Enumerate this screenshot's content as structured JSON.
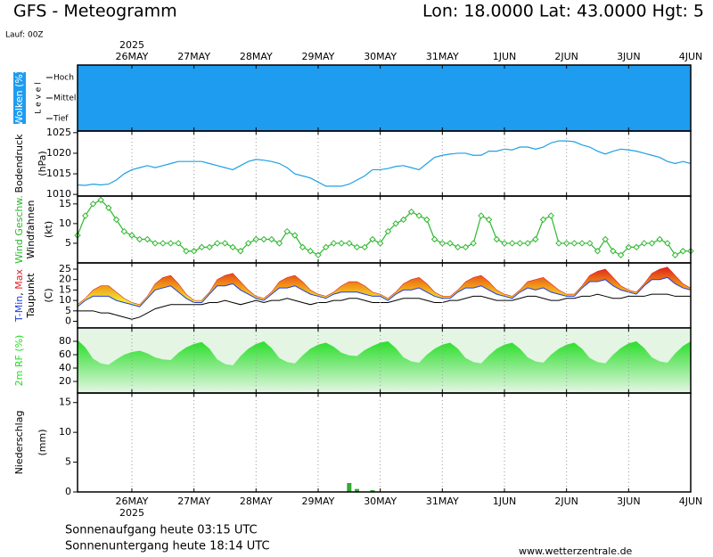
{
  "header": {
    "title": "GFS - Meteogramm",
    "location": "Lon: 18.0000  Lat: 43.0000  Hgt: 5",
    "run": "Lauf: 00Z"
  },
  "x_axis": {
    "year": "2025",
    "categories": [
      null,
      null,
      null,
      null,
      null,
      null,
      null,
      "26MAY",
      null,
      null,
      null,
      null,
      null,
      null,
      null,
      "27MAY",
      null,
      null,
      null,
      null,
      null,
      null,
      null,
      "28MAY",
      null,
      null,
      null,
      null,
      null,
      null,
      null,
      "29MAY",
      null,
      null,
      null,
      null,
      null,
      null,
      null,
      "30MAY",
      null,
      null,
      null,
      null,
      null,
      null,
      null,
      "31MAY",
      null,
      null,
      null,
      null,
      null,
      null,
      null,
      "1JUN",
      null,
      null,
      null,
      null,
      null,
      null,
      null,
      "2JUN",
      null,
      null,
      null,
      null,
      null,
      null,
      null,
      "3JUN",
      null,
      null,
      null,
      null,
      null,
      null,
      null,
      "4JUN"
    ]
  },
  "chart_data": [
    {
      "type": "cloud",
      "ylabel": [
        "Wolken (%)",
        "L e v e l"
      ],
      "levels": [
        "Hoch",
        "Mittel",
        "Tief"
      ],
      "color": "#1e9cf0"
    },
    {
      "type": "line",
      "ylabel": [
        "Bodendruck",
        "(hPa)"
      ],
      "ylim": [
        1009.6,
        1025.4
      ],
      "yticks": [
        1010,
        1015,
        1020,
        1025
      ],
      "grid": true,
      "series": [
        {
          "color": "#1ea0e6",
          "values": [
            1012.3,
            1012.2,
            1012.5,
            1012.3,
            1012.5,
            1013.5,
            1015,
            1016,
            1016.5,
            1017,
            1016.5,
            1017,
            1017.5,
            1018,
            1018,
            1018,
            1018,
            1017.5,
            1017,
            1016.5,
            1016,
            1017,
            1018,
            1018.5,
            1018.3,
            1018,
            1017.5,
            1016.5,
            1015,
            1014.5,
            1014,
            1013,
            1012,
            1012,
            1012,
            1012.5,
            1013.5,
            1014.5,
            1016,
            1016,
            1016.3,
            1016.8,
            1017,
            1016.5,
            1016,
            1017.5,
            1019,
            1019.5,
            1019.8,
            1020,
            1020,
            1019.5,
            1019.5,
            1020.5,
            1020.5,
            1021,
            1020.8,
            1021.5,
            1021.5,
            1021,
            1021.5,
            1022.5,
            1023,
            1023,
            1022.8,
            1022,
            1021.5,
            1020.5,
            1019.8,
            1020.5,
            1021,
            1020.8,
            1020.5,
            1020,
            1019.5,
            1019,
            1018,
            1017.5,
            1018,
            1017.5
          ]
        }
      ]
    },
    {
      "type": "line",
      "markers": true,
      "ylabel": [
        "Windfahnen",
        "(kt)"
      ],
      "ylim": [
        0,
        17
      ],
      "yticks": [
        5,
        10,
        15
      ],
      "grid": true,
      "series": [
        {
          "name": "Wind Geschw.",
          "color": "#2eb82e",
          "values": [
            7,
            12,
            15,
            16,
            14,
            11,
            8,
            7,
            6,
            6,
            5,
            5,
            5,
            5,
            3,
            3,
            4,
            4,
            5,
            5,
            4,
            3,
            5,
            6,
            6,
            6,
            5,
            8,
            7,
            4,
            3,
            2,
            4,
            5,
            5,
            5,
            4,
            4,
            6,
            5,
            8,
            10,
            11,
            13,
            12,
            11,
            6,
            5,
            5,
            4,
            4,
            5,
            12,
            11,
            6,
            5,
            5,
            5,
            5,
            6,
            11,
            12,
            5,
            5,
            5,
            5,
            5,
            3,
            6,
            3,
            2,
            4,
            4,
            5,
            5,
            6,
            5,
            2,
            3,
            3
          ]
        }
      ]
    },
    {
      "type": "range",
      "ylabel": [
        "(C)"
      ],
      "name_joiner": ", ",
      "ylim": [
        -3.2,
        28
      ],
      "yticks": [
        0,
        5,
        10,
        15,
        20,
        25
      ],
      "grid": true,
      "band_colors": [
        "#f0e830",
        "#f09018",
        "#e03018"
      ],
      "series": [
        {
          "name": "T-Min",
          "color": "#2040e0",
          "values": [
            7,
            10,
            12,
            12,
            12,
            10,
            9,
            8,
            7,
            11,
            15,
            16,
            17,
            14,
            11,
            9,
            9,
            13,
            17,
            17,
            18,
            15,
            13,
            11,
            10,
            13,
            16,
            16,
            17,
            15,
            13,
            12,
            11,
            13,
            14,
            14,
            14,
            13,
            12,
            12,
            10,
            13,
            15,
            15,
            16,
            14,
            12,
            11,
            11,
            14,
            16,
            16,
            17,
            15,
            13,
            12,
            11,
            14,
            16,
            15,
            16,
            14,
            13,
            12,
            12,
            16,
            19,
            19,
            20,
            17,
            15,
            14,
            13,
            17,
            20,
            20,
            21,
            18,
            16,
            15
          ]
        },
        {
          "name": "Max",
          "color": "#e02020",
          "values": [
            8,
            11,
            15,
            17,
            17,
            14,
            11,
            9,
            8,
            12,
            18,
            21,
            22,
            18,
            13,
            10,
            10,
            14,
            20,
            22,
            23,
            19,
            15,
            12,
            11,
            14,
            19,
            21,
            22,
            19,
            15,
            13,
            12,
            14,
            17,
            19,
            19,
            17,
            14,
            13,
            11,
            14,
            18,
            20,
            21,
            18,
            14,
            12,
            12,
            15,
            19,
            21,
            22,
            19,
            15,
            13,
            12,
            15,
            19,
            20,
            21,
            18,
            15,
            13,
            13,
            17,
            22,
            24,
            25,
            21,
            17,
            15,
            14,
            18,
            23,
            25,
            26,
            22,
            18,
            16
          ]
        },
        {
          "name": "Taupunkt",
          "color": "#000000",
          "values": [
            5,
            5,
            5,
            4,
            4,
            3,
            2,
            1,
            2,
            4,
            6,
            7,
            8,
            8,
            8,
            8,
            8,
            9,
            9,
            10,
            9,
            8,
            9,
            10,
            9,
            10,
            10,
            11,
            10,
            9,
            8,
            9,
            9,
            10,
            10,
            11,
            11,
            10,
            9,
            9,
            9,
            10,
            11,
            11,
            11,
            10,
            9,
            9,
            10,
            10,
            11,
            12,
            12,
            11,
            10,
            10,
            10,
            11,
            12,
            12,
            11,
            10,
            10,
            11,
            11,
            12,
            12,
            13,
            12,
            11,
            11,
            12,
            12,
            12,
            13,
            13,
            13,
            12,
            12,
            12
          ]
        }
      ]
    },
    {
      "type": "area",
      "ylim": [
        2.7,
        100
      ],
      "yticks": [
        20,
        40,
        60,
        80
      ],
      "grid": true,
      "background": "#e4f5e4",
      "series": [
        {
          "name": "2m RF (%)",
          "color": "#22dd22",
          "values": [
            82,
            71,
            54,
            47,
            45,
            53,
            60,
            64,
            66,
            62,
            56,
            53,
            52,
            63,
            71,
            76,
            79,
            69,
            53,
            46,
            44,
            58,
            69,
            76,
            80,
            70,
            55,
            49,
            47,
            59,
            69,
            75,
            78,
            72,
            63,
            59,
            58,
            67,
            73,
            78,
            80,
            70,
            56,
            50,
            48,
            60,
            69,
            75,
            78,
            69,
            55,
            49,
            47,
            59,
            69,
            75,
            78,
            69,
            56,
            50,
            48,
            60,
            69,
            75,
            78,
            69,
            55,
            49,
            47,
            60,
            70,
            77,
            80,
            70,
            56,
            50,
            48,
            62,
            73,
            80
          ]
        }
      ]
    },
    {
      "type": "bar",
      "ylabel": [
        "Niederschlag",
        "(mm)"
      ],
      "ylim": [
        0,
        16.6
      ],
      "yticks": [
        0,
        5,
        10,
        15
      ],
      "grid": true,
      "color": "#33aa33",
      "values": [
        0,
        0,
        0,
        0,
        0,
        0,
        0,
        0,
        0,
        0,
        0,
        0,
        0,
        0,
        0,
        0,
        0,
        0,
        0,
        0,
        0,
        0,
        0,
        0,
        0,
        0,
        0,
        0,
        0,
        0,
        0,
        0,
        0,
        0,
        0,
        1.5,
        0.5,
        0,
        0.3,
        0,
        0,
        0,
        0,
        0,
        0,
        0,
        0,
        0,
        0,
        0,
        0,
        0,
        0,
        0,
        0,
        0,
        0,
        0,
        0,
        0,
        0,
        0,
        0,
        0,
        0,
        0,
        0,
        0,
        0,
        0,
        0,
        0,
        0,
        0,
        0,
        0,
        0,
        0,
        0,
        0
      ]
    }
  ],
  "footer": {
    "sunrise": "Sonnenaufgang heute 03:15 UTC",
    "sunset": "Sonnenuntergang heute 18:14 UTC",
    "source": "www.wetterzentrale.de"
  }
}
